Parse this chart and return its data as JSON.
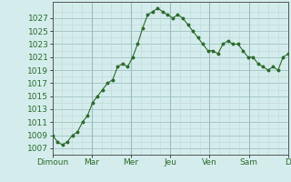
{
  "x_labels": [
    "Dimoun",
    "Mar",
    "Mer",
    "Jeu",
    "Ven",
    "Sam",
    "D"
  ],
  "y_values": [
    1009,
    1008,
    1007.5,
    1008,
    1009,
    1009.5,
    1011,
    1012,
    1014,
    1015,
    1016,
    1017,
    1017.5,
    1019.5,
    1020,
    1019.5,
    1021,
    1023,
    1025.5,
    1027.5,
    1028,
    1028.5,
    1028,
    1027.5,
    1027,
    1027.5,
    1027,
    1026,
    1025,
    1024,
    1023,
    1022,
    1022,
    1021.5,
    1023,
    1023.5,
    1023,
    1023,
    1022,
    1021,
    1021,
    1020,
    1019.5,
    1019,
    1019.5,
    1019,
    1021,
    1021.5
  ],
  "yticks": [
    1007,
    1009,
    1011,
    1013,
    1015,
    1017,
    1019,
    1021,
    1023,
    1025,
    1027
  ],
  "ylim": [
    1006.0,
    1029.5
  ],
  "bg_color": "#d4edec",
  "line_color": "#2d6a2d",
  "grid_minor_color": "#c0d8d8",
  "grid_major_color": "#9abcbc",
  "axis_color": "#555555",
  "tick_label_color": "#2d6a2d",
  "fontsize": 6.5,
  "n_points": 48
}
